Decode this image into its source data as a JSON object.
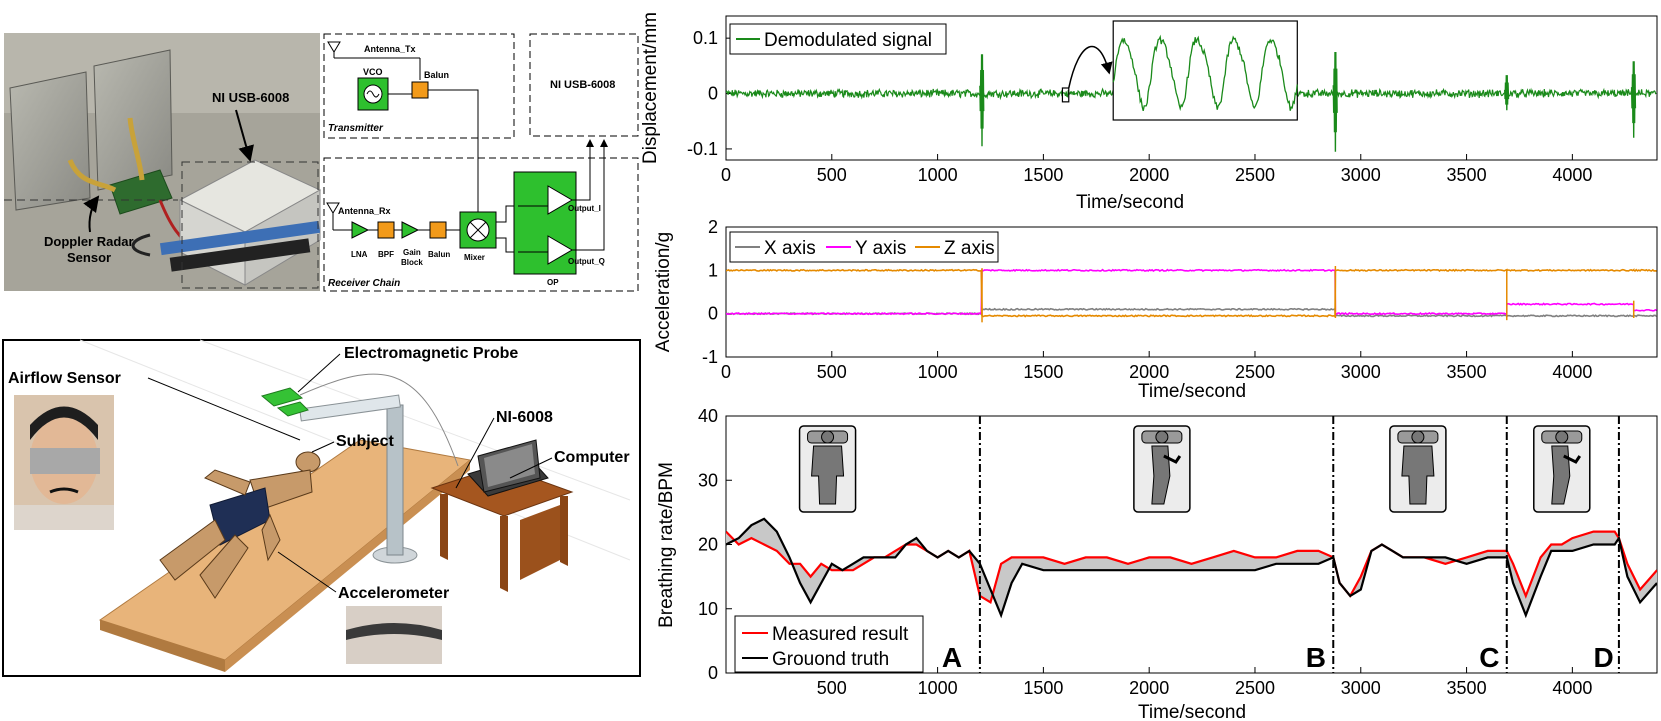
{
  "hardware": {
    "photo": {
      "label_daq": "NI USB-6008",
      "label_sensor_line1": "Doppler Radar",
      "label_sensor_line2": "Sensor"
    },
    "block": {
      "antenna_tx": "Antenna_Tx",
      "vco": "VCO",
      "balun_tx": "Balun",
      "transmitter": "Transmitter",
      "daq": "NI USB-6008",
      "antenna_rx": "Antenna_Rx",
      "lna": "LNA",
      "bpf": "BPF",
      "gain_line1": "Gain",
      "gain_line2": "Block",
      "balun_rx": "Balun",
      "mixer": "Mixer",
      "op": "OP",
      "output_i": "Output_I",
      "output_q": "Output_Q",
      "receiver_chain": "Receiver Chain"
    }
  },
  "setup": {
    "airflow_sensor": "Airflow Sensor",
    "electromagnetic_probe": "Electromagnetic Probe",
    "subject": "Subject",
    "ni6008": "NI-6008",
    "computer": "Computer",
    "accelerometer": "Accelerometer"
  },
  "chart_data": [
    {
      "type": "line",
      "ylabel": "Displacement/mm",
      "xlabel": "Time/second",
      "xlim": [
        0,
        4400
      ],
      "ylim": [
        -0.12,
        0.14
      ],
      "xticks": [
        0,
        500,
        1000,
        1500,
        2000,
        2500,
        3000,
        3500,
        4000
      ],
      "yticks": [
        -0.1,
        0,
        0.1
      ],
      "ytick_labels": [
        "-0.1",
        "0",
        "0.1"
      ],
      "series": [
        {
          "name": "Demodulated signal",
          "color": "#1a8a1a",
          "noise_amplitude": 0.006
        }
      ],
      "spikes": [
        {
          "x": 1210,
          "min": -0.095,
          "max": 0.085
        },
        {
          "x": 2880,
          "min": -0.105,
          "max": 0.09
        },
        {
          "x": 3690,
          "min": -0.03,
          "max": 0.04
        },
        {
          "x": 4290,
          "min": -0.08,
          "max": 0.07
        }
      ],
      "zoom_inset": {
        "from_x": [
          1590,
          1620
        ],
        "inset_x": [
          1830,
          2700
        ],
        "cycles": 5
      },
      "legend": "top-left"
    },
    {
      "type": "line",
      "ylabel": "Acceleration/g",
      "xlabel": "Time/second",
      "xlim": [
        0,
        4400
      ],
      "ylim": [
        -1,
        2
      ],
      "xticks": [
        0,
        500,
        1000,
        1500,
        2000,
        2500,
        3000,
        3500,
        4000
      ],
      "yticks": [
        -1,
        0,
        1,
        2
      ],
      "ytick_labels": [
        "-1",
        "0",
        "1",
        "2"
      ],
      "series": [
        {
          "name": "X axis",
          "color": "#808080",
          "segments": [
            [
              0,
              1210,
              0.0
            ],
            [
              1210,
              2880,
              0.1
            ],
            [
              2880,
              3690,
              -0.05
            ],
            [
              3690,
              4290,
              -0.05
            ],
            [
              4290,
              4400,
              -0.05
            ]
          ]
        },
        {
          "name": "Y axis",
          "color": "#ff00ff",
          "segments": [
            [
              0,
              1210,
              0.0
            ],
            [
              1210,
              2880,
              1.0
            ],
            [
              2880,
              3690,
              0.0
            ],
            [
              3690,
              4290,
              0.22
            ],
            [
              4290,
              4400,
              0.08
            ]
          ]
        },
        {
          "name": "Z axis",
          "color": "#e58a00",
          "segments": [
            [
              0,
              1210,
              1.0
            ],
            [
              1210,
              2880,
              -0.05
            ],
            [
              2880,
              3690,
              1.0
            ],
            [
              3690,
              4290,
              1.0
            ],
            [
              4290,
              4400,
              1.0
            ]
          ]
        }
      ],
      "legend": "top-left"
    },
    {
      "type": "line",
      "ylabel": "Breathing rate/BPM",
      "xlabel": "Time/second",
      "xlim": [
        0,
        4400
      ],
      "ylim": [
        0,
        40
      ],
      "xticks": [
        500,
        1000,
        1500,
        2000,
        2500,
        3000,
        3500,
        4000
      ],
      "yticks": [
        0,
        10,
        20,
        30,
        40
      ],
      "ytick_labels": [
        "0",
        "10",
        "20",
        "30",
        "40"
      ],
      "dividers": [
        1200,
        2870,
        3690,
        4220
      ],
      "phase_labels": [
        {
          "text": "A",
          "x": 1020
        },
        {
          "text": "B",
          "x": 2740
        },
        {
          "text": "C",
          "x": 3560
        },
        {
          "text": "D",
          "x": 4100
        }
      ],
      "posture_icons": [
        {
          "x": 480,
          "pose": "supine"
        },
        {
          "x": 2060,
          "pose": "side"
        },
        {
          "x": 3270,
          "pose": "supine"
        },
        {
          "x": 3950,
          "pose": "side"
        }
      ],
      "series": [
        {
          "name": "Measured result",
          "color": "#ff0000",
          "x": [
            0,
            60,
            120,
            180,
            240,
            300,
            350,
            400,
            450,
            500,
            550,
            600,
            650,
            700,
            750,
            800,
            850,
            900,
            950,
            1000,
            1050,
            1100,
            1150,
            1200,
            1250,
            1300,
            1350,
            1400,
            1500,
            1600,
            1700,
            1800,
            1900,
            2000,
            2100,
            2200,
            2300,
            2400,
            2500,
            2600,
            2700,
            2800,
            2870,
            2900,
            2950,
            3000,
            3050,
            3100,
            3150,
            3200,
            3300,
            3400,
            3500,
            3600,
            3690,
            3720,
            3780,
            3850,
            3900,
            3950,
            4000,
            4100,
            4200,
            4220,
            4260,
            4320,
            4400
          ],
          "y": [
            22,
            20,
            21,
            20,
            19,
            17,
            17,
            15,
            17,
            16,
            16,
            16,
            17,
            18,
            18,
            19,
            20,
            20,
            19,
            18,
            19,
            18,
            19,
            12,
            11,
            17,
            18,
            18,
            18,
            17,
            18,
            18,
            17,
            18,
            18,
            17,
            18,
            19,
            18,
            18,
            19,
            19,
            18,
            14,
            12,
            15,
            19,
            20,
            19,
            18,
            18,
            17,
            18,
            19,
            19,
            17,
            12,
            18,
            20,
            20,
            21,
            22,
            22,
            21,
            17,
            13,
            16
          ]
        },
        {
          "name": "Grouond truth",
          "color": "#000000",
          "x": [
            0,
            60,
            120,
            180,
            240,
            300,
            350,
            400,
            450,
            500,
            550,
            600,
            650,
            700,
            750,
            800,
            850,
            900,
            950,
            1000,
            1050,
            1100,
            1150,
            1200,
            1250,
            1300,
            1350,
            1400,
            1500,
            1600,
            1700,
            1800,
            1900,
            2000,
            2100,
            2200,
            2300,
            2400,
            2500,
            2600,
            2700,
            2800,
            2870,
            2900,
            2950,
            3000,
            3050,
            3100,
            3150,
            3200,
            3300,
            3400,
            3500,
            3600,
            3690,
            3720,
            3780,
            3850,
            3900,
            3950,
            4000,
            4100,
            4200,
            4220,
            4260,
            4320,
            4400
          ],
          "y": [
            20,
            21,
            23,
            24,
            22,
            18,
            14,
            11,
            14,
            17,
            16,
            17,
            18,
            18,
            18,
            18,
            20,
            21,
            19,
            18,
            19,
            18,
            19,
            17,
            13,
            9,
            14,
            17,
            16,
            16,
            16,
            16,
            16,
            16,
            16,
            16,
            16,
            16,
            16,
            17,
            17,
            17,
            18,
            14,
            12,
            13,
            19,
            20,
            19,
            18,
            18,
            18,
            17,
            18,
            18,
            14,
            9,
            15,
            19,
            19,
            19,
            20,
            20,
            21,
            15,
            11,
            14
          ]
        }
      ],
      "legend": "bottom-left"
    }
  ]
}
